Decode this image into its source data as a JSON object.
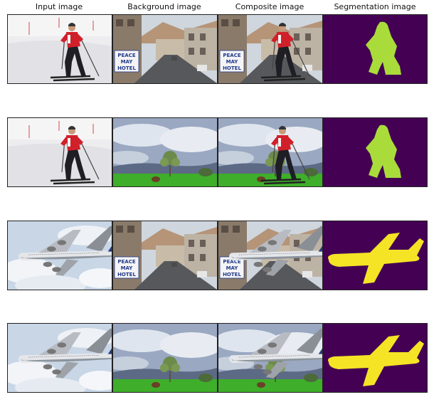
{
  "columns": [
    {
      "key": "input",
      "title": "Input image"
    },
    {
      "key": "background",
      "title": "Background image"
    },
    {
      "key": "composite",
      "title": "Composite image"
    },
    {
      "key": "segmentation",
      "title": "Segmentation image"
    }
  ],
  "rows": [
    {
      "foreground": "skier",
      "background": "street",
      "mask_color": "#a9dc3a"
    },
    {
      "foreground": "skier",
      "background": "meadow",
      "mask_color": "#a9dc3a"
    },
    {
      "foreground": "airplane",
      "background": "street",
      "mask_color": "#f4e425"
    },
    {
      "foreground": "airplane",
      "background": "meadow",
      "mask_color": "#f4e425"
    }
  ],
  "street_sign": [
    "PEACE",
    "MAY",
    "HOTEL"
  ],
  "colors": {
    "mask_background": "#440154",
    "sky": "#c8d6e6",
    "grass": "#3fae2a"
  }
}
